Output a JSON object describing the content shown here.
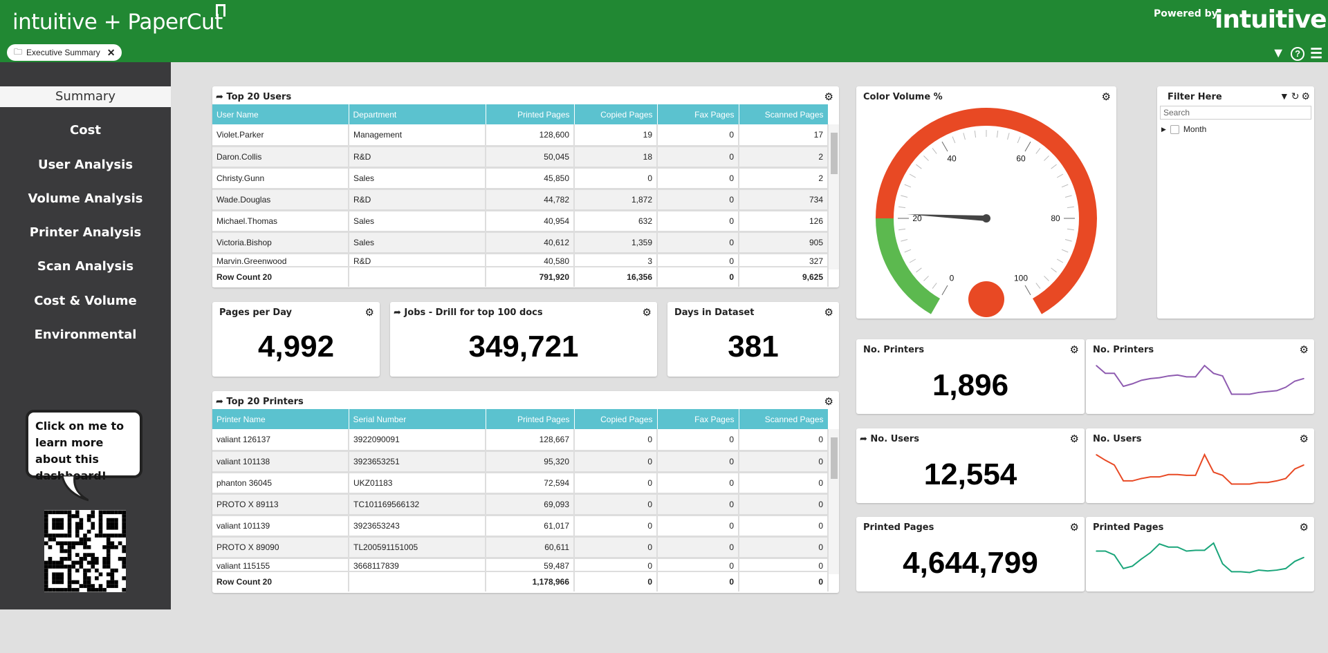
{
  "header": {
    "logo_text": "intuitive + PaperCut",
    "tab_label": "Executive Summary",
    "powered_by": "Powered by",
    "brand": "intuitive",
    "icons": [
      "filter-icon",
      "help-icon",
      "menu-icon"
    ]
  },
  "sidebar": {
    "items": [
      {
        "label": "Summary",
        "active": true
      },
      {
        "label": "Cost"
      },
      {
        "label": "User Analysis"
      },
      {
        "label": "Volume Analysis"
      },
      {
        "label": "Printer Analysis"
      },
      {
        "label": "Scan Analysis"
      },
      {
        "label": "Cost & Volume"
      },
      {
        "label": "Environmental"
      }
    ],
    "bubble_text": "Click on me to learn more about this dashboard!"
  },
  "users_table": {
    "title": "Top 20 Users",
    "columns": [
      "User Name",
      "Department",
      "Printed Pages",
      "Copied Pages",
      "Fax Pages",
      "Scanned Pages"
    ],
    "rows": [
      [
        "Violet.Parker",
        "Management",
        "128,600",
        "19",
        "0",
        "17"
      ],
      [
        "Daron.Collis",
        "R&D",
        "50,045",
        "18",
        "0",
        "2"
      ],
      [
        "Christy.Gunn",
        "Sales",
        "45,850",
        "0",
        "0",
        "2"
      ],
      [
        "Wade.Douglas",
        "R&D",
        "44,782",
        "1,872",
        "0",
        "734"
      ],
      [
        "Michael.Thomas",
        "Sales",
        "40,954",
        "632",
        "0",
        "126"
      ],
      [
        "Victoria.Bishop",
        "Sales",
        "40,612",
        "1,359",
        "0",
        "905"
      ],
      [
        "Marvin.Greenwood",
        "R&D",
        "40,580",
        "3",
        "0",
        "327"
      ]
    ],
    "footer": [
      "Row Count 20",
      "",
      "791,920",
      "16,356",
      "0",
      "9,625"
    ]
  },
  "printers_table": {
    "title": "Top 20 Printers",
    "columns": [
      "Printer Name",
      "Serial Number",
      "Printed Pages",
      "Copied Pages",
      "Fax Pages",
      "Scanned Pages"
    ],
    "rows": [
      [
        "valiant 126137",
        "3922090091",
        "128,667",
        "0",
        "0",
        "0"
      ],
      [
        "valiant 101138",
        "3923653251",
        "95,320",
        "0",
        "0",
        "0"
      ],
      [
        "phanton 36045",
        "UKZ01183",
        "72,594",
        "0",
        "0",
        "0"
      ],
      [
        "PROTO X 89113",
        "TC101169566132",
        "69,093",
        "0",
        "0",
        "0"
      ],
      [
        "valiant 101139",
        "3923653243",
        "61,017",
        "0",
        "0",
        "0"
      ],
      [
        "PROTO X 89090",
        "TL200591151005",
        "60,611",
        "0",
        "0",
        "0"
      ],
      [
        "valiant 115155",
        "3668117839",
        "59,487",
        "0",
        "0",
        "0"
      ]
    ],
    "footer": [
      "Row Count 20",
      "",
      "1,178,966",
      "0",
      "0",
      "0"
    ]
  },
  "kpis": {
    "pages_per_day": {
      "title": "Pages per Day",
      "value": "4,992"
    },
    "jobs": {
      "title": "Jobs - Drill for top 100 docs",
      "value": "349,721"
    },
    "days": {
      "title": "Days in Dataset",
      "value": "381"
    },
    "printers": {
      "title": "No. Printers",
      "value": "1,896"
    },
    "users": {
      "title": "No. Users",
      "value": "12,554"
    },
    "printed": {
      "title": "Printed Pages",
      "value": "4,644,799"
    }
  },
  "gauge": {
    "title": "Color Volume %",
    "value": 21,
    "min": 0,
    "max": 100,
    "labels": [
      "0",
      "20",
      "40",
      "60",
      "80",
      "100"
    ],
    "bands": [
      {
        "from": 0,
        "to": 20,
        "color": "#5cb94f"
      },
      {
        "from": 20,
        "to": 100,
        "color": "#e84924"
      }
    ],
    "dot_color": "#e84924"
  },
  "filter": {
    "title": "Filter Here",
    "search_placeholder": "Search",
    "item": "Month"
  },
  "chart_data": [
    {
      "type": "line",
      "title": "No. Printers",
      "color": "#8e5bb0",
      "values": [
        100,
        91,
        91,
        76,
        79,
        83,
        85,
        86,
        88,
        89,
        87,
        87,
        100,
        91,
        88,
        67,
        67,
        67,
        69,
        70,
        71,
        75,
        82,
        85
      ]
    },
    {
      "type": "line",
      "title": "No. Users",
      "color": "#e84924",
      "values": [
        100,
        93,
        87,
        67,
        67,
        70,
        72,
        72,
        75,
        75,
        74,
        74,
        100,
        78,
        74,
        63,
        63,
        63,
        65,
        65,
        67,
        70,
        82,
        87
      ]
    },
    {
      "type": "line",
      "title": "Printed Pages",
      "color": "#1aa57a",
      "values": [
        87,
        87,
        82,
        65,
        68,
        77,
        85,
        96,
        92,
        92,
        87,
        88,
        88,
        97,
        71,
        61,
        61,
        60,
        63,
        62,
        63,
        65,
        74,
        79
      ]
    }
  ]
}
